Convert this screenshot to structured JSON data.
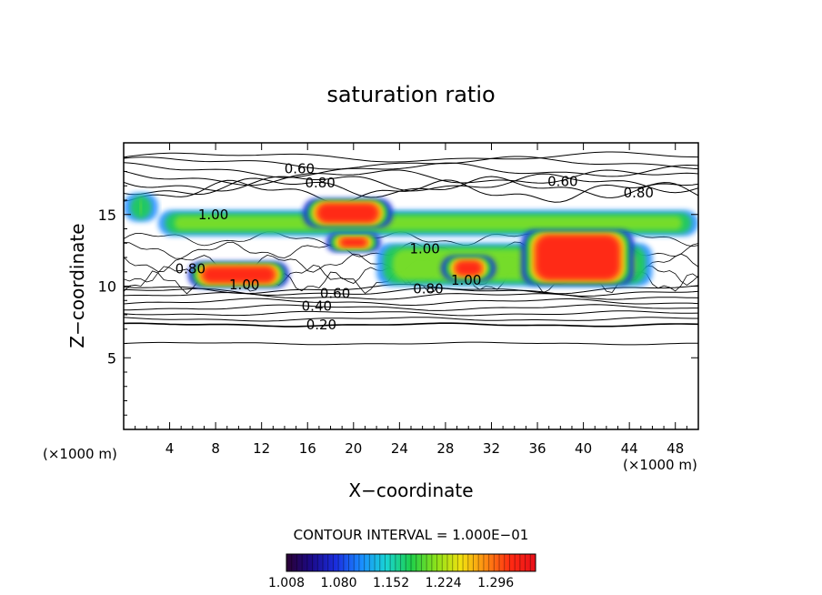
{
  "chart_data": {
    "type": "heatmap",
    "title": "saturation ratio",
    "xlabel": "X−coordinate",
    "ylabel": "Z−coordinate",
    "x_unit_left": "(×1000 m)",
    "x_unit_right": "(×1000 m)",
    "xlim": [
      0,
      50
    ],
    "ylim": [
      0,
      20
    ],
    "x_ticks": [
      4,
      8,
      12,
      16,
      20,
      24,
      28,
      32,
      36,
      40,
      44,
      48
    ],
    "x_tick_labels": [
      "4",
      "8",
      "12",
      "16",
      "20",
      "24",
      "28",
      "32",
      "36",
      "40",
      "44",
      "48"
    ],
    "y_ticks": [
      5,
      10,
      15
    ],
    "y_tick_labels": [
      "5",
      "10",
      "15"
    ],
    "contour_interval_text": "CONTOUR INTERVAL = 1.000E−01",
    "contour_labels": [
      {
        "text": "0.60",
        "x": 15.3,
        "y": 18.2
      },
      {
        "text": "0.80",
        "x": 17.1,
        "y": 17.2
      },
      {
        "text": "0.60",
        "x": 38.2,
        "y": 17.3
      },
      {
        "text": "0.80",
        "x": 44.8,
        "y": 16.5
      },
      {
        "text": "1.00",
        "x": 7.8,
        "y": 15.0
      },
      {
        "text": "1.00",
        "x": 26.2,
        "y": 12.6
      },
      {
        "text": "0.80",
        "x": 5.8,
        "y": 11.2
      },
      {
        "text": "1.00",
        "x": 10.5,
        "y": 10.1
      },
      {
        "text": "1.00",
        "x": 29.8,
        "y": 10.4
      },
      {
        "text": "0.80",
        "x": 26.5,
        "y": 9.8
      },
      {
        "text": "0.60",
        "x": 18.4,
        "y": 9.5
      },
      {
        "text": "0.40",
        "x": 16.8,
        "y": 8.6
      },
      {
        "text": "0.20",
        "x": 17.2,
        "y": 7.3
      }
    ],
    "colorbar": {
      "min": 1.008,
      "max": 1.32,
      "tick_labels": [
        "1.008",
        "1.080",
        "1.152",
        "1.224",
        "1.296"
      ],
      "colors": [
        "#2a0033",
        "#1b0a8a",
        "#1a2fe0",
        "#1a8cff",
        "#19d4d4",
        "#1ecf4a",
        "#8be21a",
        "#f2e10f",
        "#ff8a12",
        "#ff2a12",
        "#e8101a"
      ]
    },
    "regions": [
      {
        "level": "high",
        "x": [
          6,
          14
        ],
        "y": [
          10,
          11.6
        ]
      },
      {
        "level": "high",
        "x": [
          16,
          23
        ],
        "y": [
          14.2,
          16
        ]
      },
      {
        "level": "high",
        "x": [
          18,
          22
        ],
        "y": [
          12.5,
          13.6
        ]
      },
      {
        "level": "high",
        "x": [
          28,
          32
        ],
        "y": [
          10.5,
          12
        ]
      },
      {
        "level": "high",
        "x": [
          35,
          44
        ],
        "y": [
          10.2,
          13.8
        ]
      },
      {
        "level": "mid",
        "x": [
          0,
          3
        ],
        "y": [
          14.5,
          16.5
        ]
      },
      {
        "level": "mid",
        "x": [
          3,
          50
        ],
        "y": [
          13.5,
          15.3
        ]
      },
      {
        "level": "mid",
        "x": [
          22,
          46
        ],
        "y": [
          10,
          13
        ]
      }
    ]
  }
}
